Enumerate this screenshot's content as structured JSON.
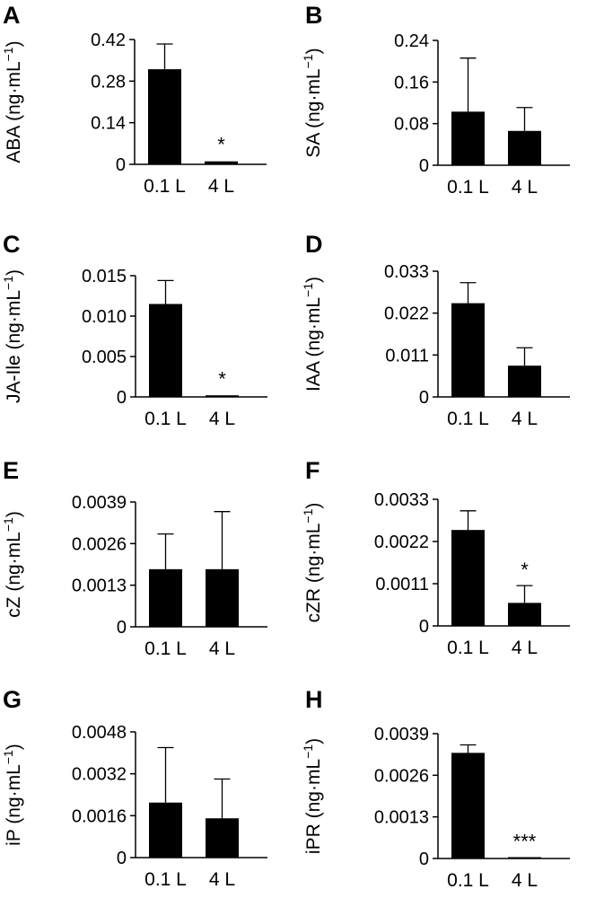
{
  "chart_data": [
    {
      "panel": "A",
      "type": "bar",
      "ylabel": "ABA",
      "yunit": "(ng·mL",
      "yexp": "−1",
      "categories": [
        "0.1 L",
        "4 L"
      ],
      "values": [
        0.32,
        0.01
      ],
      "errors": [
        0.085,
        0.003
      ],
      "ylim": [
        0,
        0.42
      ],
      "yticks": [
        "0",
        "0.14",
        "0.28",
        "0.42"
      ],
      "significance": [
        "",
        "*"
      ]
    },
    {
      "panel": "B",
      "type": "bar",
      "ylabel": "SA",
      "yunit": "(ng·mL",
      "yexp": "−1",
      "categories": [
        "0.1 L",
        "4 L"
      ],
      "values": [
        0.103,
        0.066
      ],
      "errors": [
        0.103,
        0.045
      ],
      "ylim": [
        0,
        0.24
      ],
      "yticks": [
        "0",
        "0.08",
        "0.16",
        "0.24"
      ],
      "significance": [
        "",
        ""
      ]
    },
    {
      "panel": "C",
      "type": "bar",
      "ylabel": "JA-Ile",
      "yunit": "(ng·mL",
      "yexp": "−1",
      "categories": [
        "0.1 L",
        "4 L"
      ],
      "values": [
        0.0115,
        0.0002
      ],
      "errors": [
        0.0029,
        0.0001
      ],
      "ylim": [
        0,
        0.015
      ],
      "yticks": [
        "0",
        "0.005",
        "0.010",
        "0.015"
      ],
      "significance": [
        "",
        "*"
      ]
    },
    {
      "panel": "D",
      "type": "bar",
      "ylabel": "IAA",
      "yunit": "(ng·mL",
      "yexp": "−1",
      "categories": [
        "0.1 L",
        "4 L"
      ],
      "values": [
        0.0246,
        0.0082
      ],
      "errors": [
        0.0054,
        0.0047
      ],
      "ylim": [
        0,
        0.033
      ],
      "yticks": [
        "0",
        "0.011",
        "0.022",
        "0.033"
      ],
      "significance": [
        "",
        ""
      ]
    },
    {
      "panel": "E",
      "type": "bar",
      "ylabel": "cZ",
      "yunit": "(ng·mL",
      "yexp": "−1",
      "categories": [
        "0.1 L",
        "4 L"
      ],
      "values": [
        0.0018,
        0.0018
      ],
      "errors": [
        0.0011,
        0.0018
      ],
      "ylim": [
        0,
        0.0039
      ],
      "yticks": [
        "0",
        "0.0013",
        "0.0026",
        "0.0039"
      ],
      "significance": [
        "",
        ""
      ]
    },
    {
      "panel": "F",
      "type": "bar",
      "ylabel": "cZR",
      "yunit": "(ng·mL",
      "yexp": "−1",
      "categories": [
        "0.1 L",
        "4 L"
      ],
      "values": [
        0.0025,
        0.0006
      ],
      "errors": [
        0.0005,
        0.00045
      ],
      "ylim": [
        0,
        0.0033
      ],
      "yticks": [
        "0",
        "0.0011",
        "0.0022",
        "0.0033"
      ],
      "significance": [
        "",
        "*"
      ]
    },
    {
      "panel": "G",
      "type": "bar",
      "ylabel": "iP",
      "yunit": "(ng·mL",
      "yexp": "−1",
      "categories": [
        "0.1 L",
        "4 L"
      ],
      "values": [
        0.0021,
        0.0015
      ],
      "errors": [
        0.0021,
        0.0015
      ],
      "ylim": [
        0,
        0.0048
      ],
      "yticks": [
        "0",
        "0.0016",
        "0.0032",
        "0.0048"
      ],
      "significance": [
        "",
        ""
      ]
    },
    {
      "panel": "H",
      "type": "bar",
      "ylabel": "iPR",
      "yunit": "(ng·mL",
      "yexp": "−1",
      "categories": [
        "0.1 L",
        "4 L"
      ],
      "values": [
        0.0033,
        3e-05
      ],
      "errors": [
        0.00025,
        1e-05
      ],
      "ylim": [
        0,
        0.0039
      ],
      "yticks": [
        "0",
        "0.0013",
        "0.0026",
        "0.0039"
      ],
      "significance": [
        "",
        "***"
      ]
    }
  ]
}
